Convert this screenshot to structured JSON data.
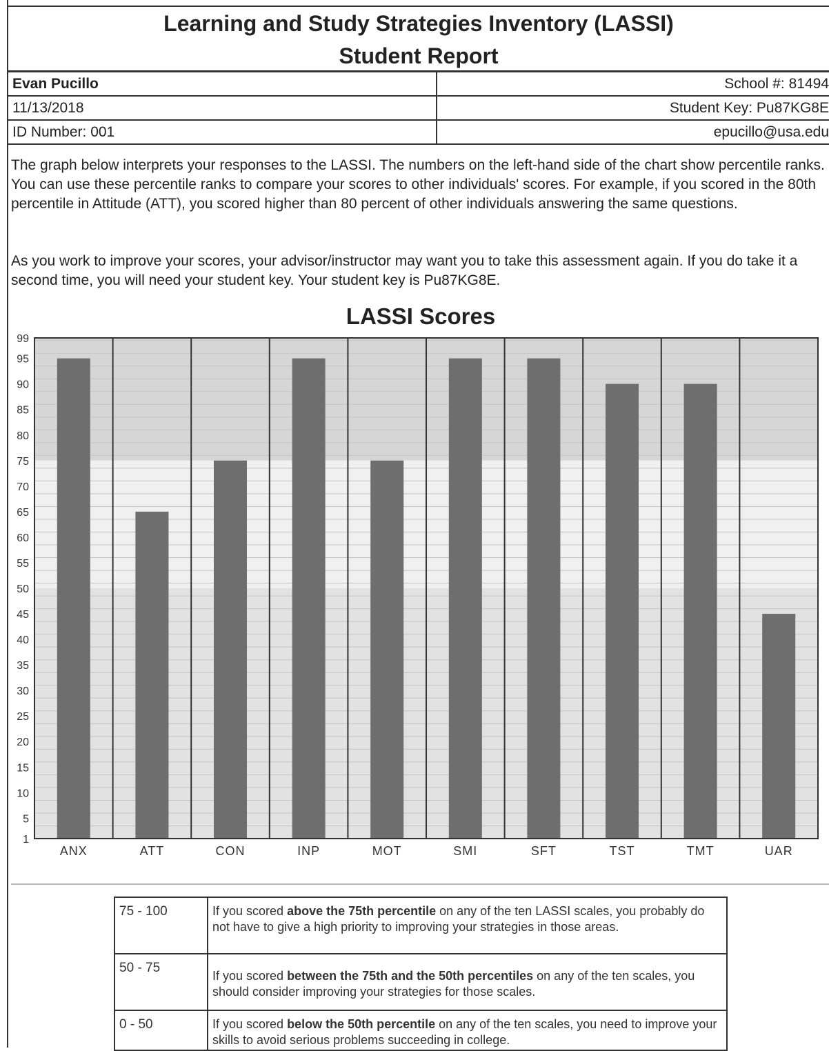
{
  "header": {
    "title": "Learning and Study Strategies Inventory (LASSI)",
    "subtitle": "Student Report"
  },
  "student": {
    "name": "Evan Pucillo",
    "school": "School #: 81494",
    "date": "11/13/2018",
    "key": "Student Key: Pu87KG8E",
    "id": "ID Number: 001",
    "email": "epucillo@usa.edu"
  },
  "intro": {
    "paragraph1": "The graph below interprets your responses to the LASSI. The numbers on the left-hand side of the chart show percentile ranks. You can use these percentile ranks to compare your scores to other individuals' scores. For example, if you scored in the 80th percentile in Attitude (ATT), you scored higher than 80 percent of other individuals answering the same questions.",
    "paragraph2": "As you work to improve your scores, your advisor/instructor may want you to take this assessment again. If you do take it a second time, you will need your student key. Your student key is Pu87KG8E."
  },
  "chart_data": {
    "type": "bar",
    "title": "LASSI Scores",
    "categories": [
      "ANX",
      "ATT",
      "CON",
      "INP",
      "MOT",
      "SMI",
      "SFT",
      "TST",
      "TMT",
      "UAR"
    ],
    "values": [
      95,
      65,
      75,
      95,
      75,
      95,
      95,
      90,
      90,
      45
    ],
    "ylim": [
      1,
      99
    ],
    "yticks": [
      99,
      95,
      90,
      85,
      80,
      75,
      70,
      65,
      60,
      55,
      50,
      45,
      40,
      35,
      30,
      25,
      20,
      15,
      10,
      5,
      1
    ],
    "bands": [
      {
        "from": 75,
        "to": 99,
        "color": "#d6d6d6"
      },
      {
        "from": 50,
        "to": 75,
        "color": "#f0f0f0"
      },
      {
        "from": 1,
        "to": 50,
        "color": "#e2e2e2"
      }
    ],
    "bar_color": "#6e6e6e",
    "grid": true
  },
  "legend": {
    "rows": [
      {
        "range": "75 - 100",
        "pre": "If you scored ",
        "bold": "above the 75th percentile",
        "post": " on any of the ten LASSI scales, you probably do not have to give a high priority to improving your strategies in those areas."
      },
      {
        "range": "50 - 75",
        "pre": "If you scored ",
        "bold": "between the 75th and the 50th percentiles",
        "post": " on any of the ten scales, you should consider improving your strategies for those scales."
      },
      {
        "range": "0 - 50",
        "pre": "If you scored ",
        "bold": "below the 50th percentile",
        "post": " on any of the ten scales, you need to improve your skills to avoid serious problems succeeding in college."
      }
    ]
  }
}
